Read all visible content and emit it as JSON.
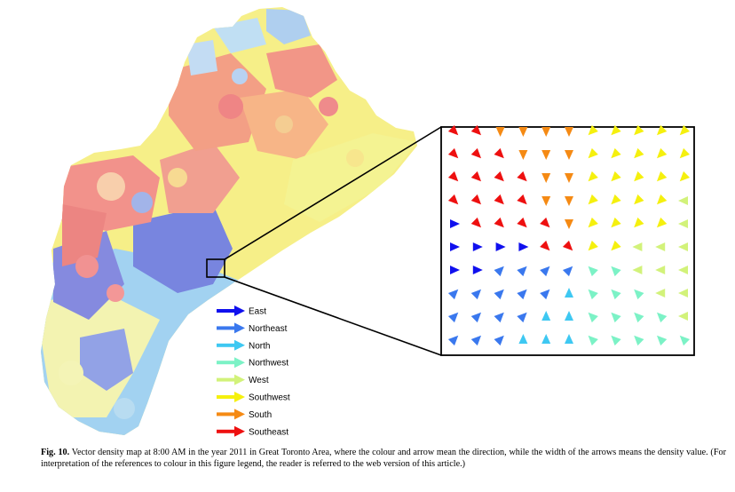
{
  "figure": {
    "region": "Great Toronto Area",
    "time": "8:00 AM",
    "year": "2011"
  },
  "legend": [
    {
      "label": "East",
      "color": "#1010ee",
      "angle": 0
    },
    {
      "label": "Northeast",
      "color": "#3a78ee",
      "angle": 0
    },
    {
      "label": "North",
      "color": "#3ec8f2",
      "angle": 0
    },
    {
      "label": "Northwest",
      "color": "#7cf2c6",
      "angle": 0
    },
    {
      "label": "West",
      "color": "#d2f27a",
      "angle": 0
    },
    {
      "label": "Southwest",
      "color": "#f5f00e",
      "angle": 0
    },
    {
      "label": "South",
      "color": "#f58a14",
      "angle": 0
    },
    {
      "label": "Southeast",
      "color": "#ee1010",
      "angle": 0
    }
  ],
  "inset": {
    "description_icon": "zoom-inset",
    "grid": [
      [
        "SE",
        "SE",
        "S",
        "S",
        "S",
        "S",
        "SW",
        "SW",
        "SW",
        "SW",
        "SW"
      ],
      [
        "SE",
        "SE",
        "SE",
        "S",
        "S",
        "S",
        "SW",
        "SW",
        "SW",
        "SW",
        "SW"
      ],
      [
        "SE",
        "SE",
        "SE",
        "SE",
        "S",
        "S",
        "SW",
        "SW",
        "SW",
        "SW",
        "SW"
      ],
      [
        "SE",
        "SE",
        "SE",
        "SE",
        "S",
        "S",
        "SW",
        "SW",
        "SW",
        "SW",
        "W"
      ],
      [
        "E",
        "SE",
        "SE",
        "SE",
        "SE",
        "S",
        "SW",
        "SW",
        "SW",
        "SW",
        "W"
      ],
      [
        "E",
        "E",
        "E",
        "E",
        "SE",
        "SE",
        "SW",
        "SW",
        "W",
        "W",
        "W"
      ],
      [
        "E",
        "E",
        "NE",
        "NE",
        "NE",
        "NE",
        "NW",
        "NW",
        "W",
        "W",
        "W"
      ],
      [
        "NE",
        "NE",
        "NE",
        "NE",
        "NE",
        "N",
        "NW",
        "NW",
        "NW",
        "W",
        "W"
      ],
      [
        "NE",
        "NE",
        "NE",
        "NE",
        "N",
        "N",
        "NW",
        "NW",
        "NW",
        "NW",
        "W"
      ],
      [
        "NE",
        "NE",
        "NE",
        "N",
        "N",
        "N",
        "NW",
        "NW",
        "NW",
        "NW",
        "NW"
      ]
    ],
    "direction_colors": {
      "E": "#1010ee",
      "NE": "#3a78ee",
      "N": "#3ec8f2",
      "NW": "#7cf2c6",
      "W": "#d2f27a",
      "SW": "#f5f00e",
      "S": "#f58a14",
      "SE": "#ee1010"
    },
    "direction_angles": {
      "E": 0,
      "NE": -45,
      "N": -90,
      "NW": -135,
      "W": 180,
      "SW": 135,
      "S": 90,
      "SE": 45
    }
  },
  "caption": {
    "label": "Fig. 10.",
    "text": "Vector density map at 8:00 AM in the year 2011 in Great Toronto Area, where the colour and arrow mean the direction, while the width of the arrows means the density value. (For interpretation of the references to colour in this figure legend, the reader is referred to the web version of this article.)"
  }
}
